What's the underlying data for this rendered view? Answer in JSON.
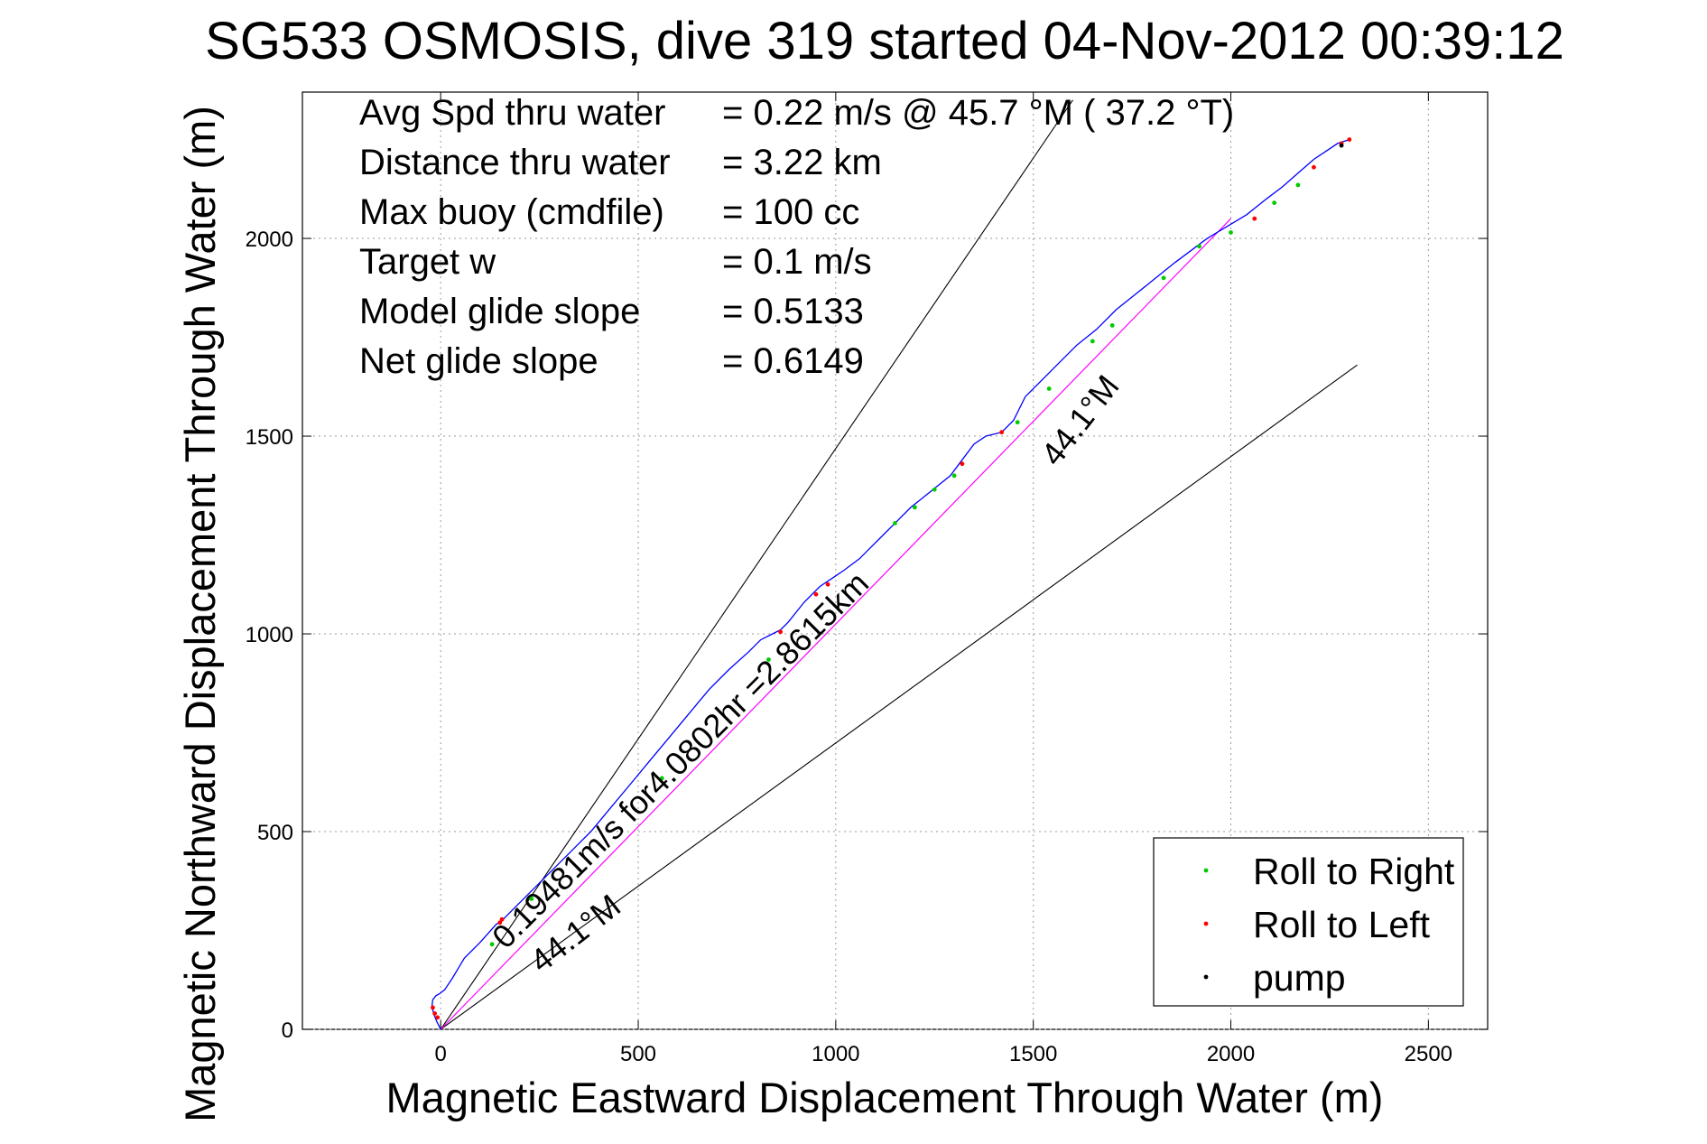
{
  "chart_data": {
    "type": "line",
    "title": "SG533 OSMOSIS, dive 319 started 04-Nov-2012 00:39:12",
    "xlabel": "Magnetic Eastward Displacement Through Water (m)",
    "ylabel": "Magnetic Northward Displacement Through Water (m)",
    "xlim": [
      -350,
      2650
    ],
    "ylim": [
      0,
      2370
    ],
    "xticks": [
      0,
      500,
      1000,
      1500,
      2000,
      2500
    ],
    "yticks": [
      0,
      500,
      1000,
      1500,
      2000
    ],
    "grid": true,
    "stats": [
      {
        "label": "Avg Spd thru water",
        "value": "=  0.22 m/s @  45.7 °M ( 37.2 °T)"
      },
      {
        "label": "Distance thru water",
        "value": "=  3.22 km"
      },
      {
        "label": "Max buoy (cmdfile)",
        "value": "= 100 cc"
      },
      {
        "label": "Target w",
        "value": "= 0.1 m/s"
      },
      {
        "label": "Model glide slope",
        "value": "= 0.5133"
      },
      {
        "label": "Net glide slope",
        "value": "= 0.6149"
      }
    ],
    "track": {
      "x": [
        0,
        -10,
        -18,
        -22,
        -20,
        -12,
        -3,
        10,
        30,
        60,
        100,
        140,
        155,
        190,
        230,
        280,
        330,
        380,
        430,
        480,
        530,
        580,
        630,
        680,
        730,
        780,
        810,
        840,
        860,
        880,
        920,
        960,
        990,
        1020,
        1060,
        1090,
        1120,
        1150,
        1190,
        1240,
        1290,
        1320,
        1350,
        1380,
        1420,
        1450,
        1480,
        1510,
        1560,
        1610,
        1660,
        1710,
        1760,
        1810,
        1860,
        1900,
        1940,
        1990,
        2040,
        2090,
        2130,
        2170,
        2210,
        2240,
        2270,
        2300
      ],
      "y": [
        0,
        20,
        40,
        60,
        75,
        85,
        90,
        100,
        130,
        180,
        220,
        265,
        275,
        310,
        350,
        400,
        450,
        500,
        560,
        620,
        680,
        740,
        800,
        860,
        910,
        955,
        985,
        1000,
        1010,
        1030,
        1080,
        1120,
        1140,
        1160,
        1190,
        1220,
        1250,
        1280,
        1320,
        1360,
        1400,
        1440,
        1480,
        1500,
        1510,
        1540,
        1600,
        1630,
        1680,
        1730,
        1770,
        1820,
        1860,
        1900,
        1940,
        1970,
        2000,
        2030,
        2060,
        2100,
        2130,
        2165,
        2200,
        2220,
        2240,
        2250
      ]
    },
    "net_line": {
      "x": [
        0,
        2000
      ],
      "y": [
        0,
        2050
      ]
    },
    "heading_lines": [
      {
        "x": [
          0,
          1600
        ],
        "y": [
          0,
          2350
        ]
      },
      {
        "x": [
          0,
          2320
        ],
        "y": [
          0,
          1680
        ]
      }
    ],
    "roll_right_markers": {
      "x": [
        130,
        230,
        560,
        830,
        1150,
        1200,
        1250,
        1300,
        1460,
        1540,
        1650,
        1700,
        1830,
        1920,
        2000,
        2110,
        2170
      ],
      "y": [
        215,
        330,
        635,
        935,
        1280,
        1320,
        1365,
        1400,
        1535,
        1620,
        1740,
        1780,
        1900,
        1980,
        2015,
        2090,
        2135
      ]
    },
    "roll_left_markers": {
      "x": [
        -20,
        -15,
        -8,
        150,
        155,
        860,
        950,
        980,
        1320,
        1420,
        2060,
        2210,
        2280,
        2300
      ],
      "y": [
        55,
        40,
        30,
        270,
        278,
        1005,
        1100,
        1125,
        1430,
        1510,
        2050,
        2180,
        2240,
        2250
      ]
    },
    "pump_markers": {
      "x": [
        2280
      ],
      "y": [
        2235
      ]
    },
    "annotations": [
      {
        "text": "0.19481m/s for4.0802hr =2.8615km",
        "x": 165,
        "y": 200,
        "angle": -45
      },
      {
        "text": "44.1°M",
        "x": 1560,
        "y": 1420,
        "angle": -52
      },
      {
        "text": "44.1°M",
        "x": 255,
        "y": 140,
        "angle": -38
      }
    ],
    "legend": {
      "position": "bottom-right",
      "entries": [
        {
          "label": "Roll to Right",
          "color": "#00cc00"
        },
        {
          "label": "Roll to Left",
          "color": "#ff0000"
        },
        {
          "label": "pump",
          "color": "#000000"
        }
      ]
    },
    "colors": {
      "track": "#0000ff",
      "net_line": "#ff00ff",
      "heading_lines": "#000000",
      "grid": "#9a9a9a"
    }
  }
}
